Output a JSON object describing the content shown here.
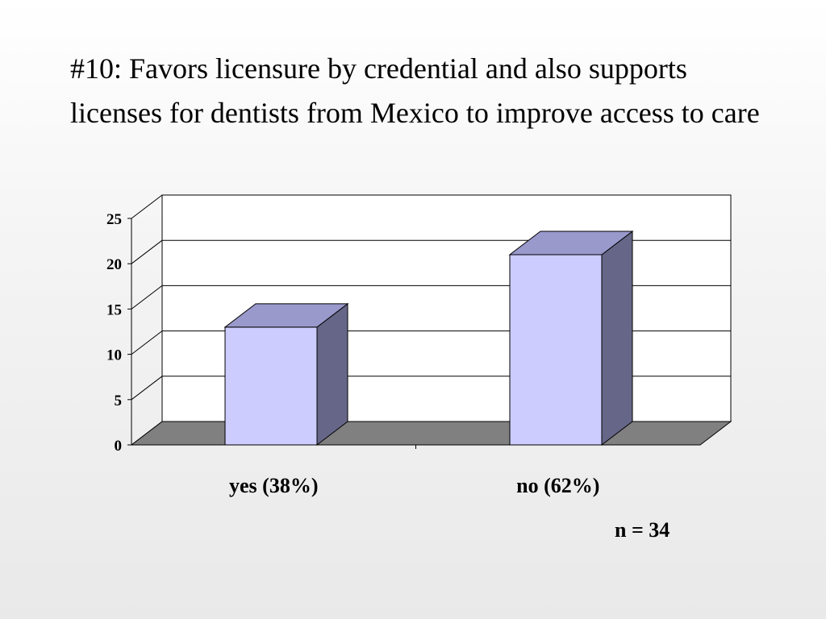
{
  "slide": {
    "title": "#10:  Favors licensure by credential and also supports licenses for dentists from Mexico to improve access to care",
    "note": "n = 34"
  },
  "chart_data": {
    "type": "bar",
    "categories": [
      "yes (38%)",
      "no (62%)"
    ],
    "values": [
      13,
      21
    ],
    "title": "",
    "xlabel": "",
    "ylabel": "",
    "ylim": [
      0,
      25
    ],
    "yticks": [
      0,
      5,
      10,
      15,
      20,
      25
    ],
    "grid": true,
    "style": "3d-column",
    "colors": {
      "bar_front": "#ccccff",
      "bar_top": "#9999cc",
      "bar_side": "#666688",
      "floor": "#808080",
      "grid": "#000000"
    }
  }
}
